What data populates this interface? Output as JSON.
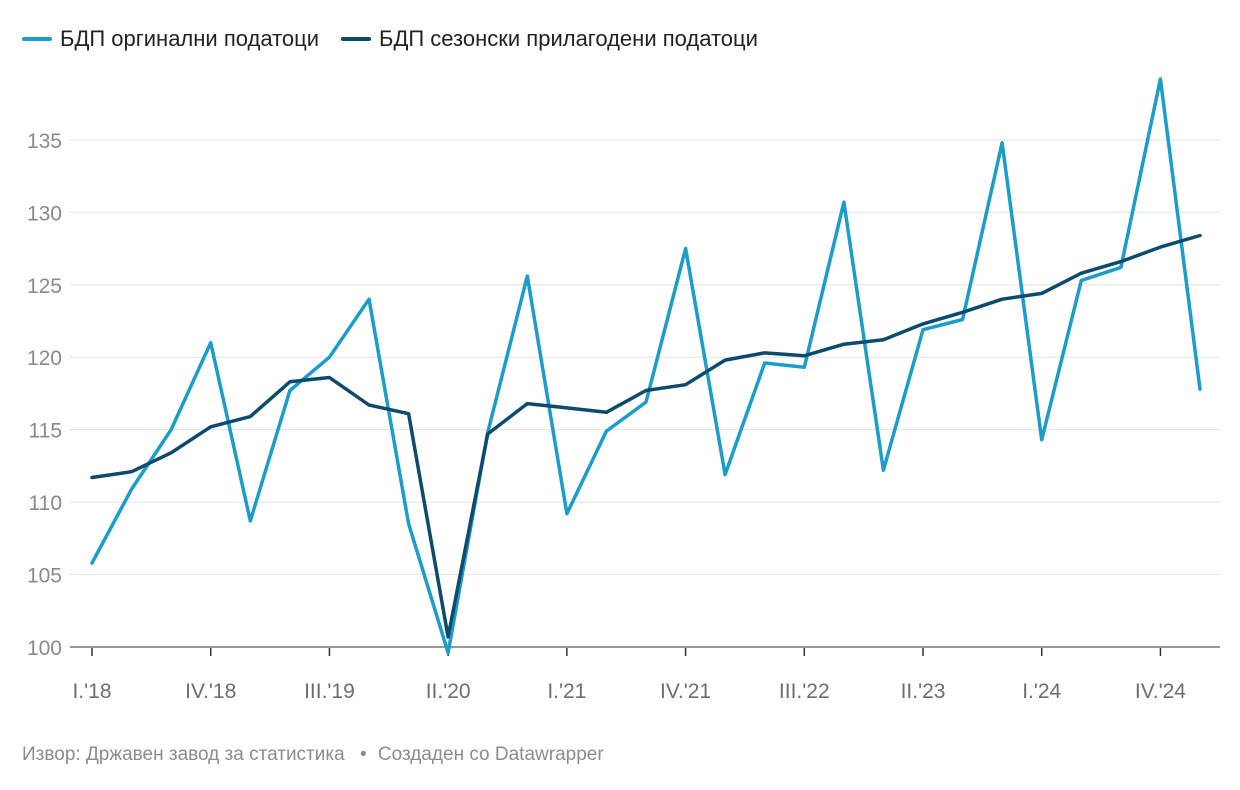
{
  "legend": {
    "original_label": "БДП оргинални податоци",
    "seasonal_label": "БДП сезонски прилагодени податоци"
  },
  "footer": {
    "source": "Извор: Државен завод за статистика",
    "separator": "•",
    "credit": "Создаден со Datawrapper"
  },
  "chart_data": {
    "type": "line",
    "x": [
      "I.'18",
      "II.'18",
      "III.'18",
      "IV.'18",
      "I.'19",
      "II.'19",
      "III.'19",
      "IV.'19",
      "I.'20",
      "II.'20",
      "III.'20",
      "IV.'20",
      "I.'21",
      "II.'21",
      "III.'21",
      "IV.'21",
      "I.'22",
      "II.'22",
      "III.'22",
      "IV.'22",
      "I.'23",
      "II.'23",
      "III.'23",
      "IV.'23",
      "I.'24",
      "II.'24",
      "III.'24",
      "IV.'24",
      "I.'25"
    ],
    "x_tick_labels": [
      "I.'18",
      "IV.'18",
      "III.'19",
      "II.'20",
      "I.'21",
      "IV.'21",
      "III.'22",
      "II.'23",
      "I.'24",
      "IV.'24"
    ],
    "series": [
      {
        "name": "БДП оргинални податоци",
        "color": "#1a9ec9",
        "values": [
          105.8,
          110.9,
          115.0,
          121.0,
          108.7,
          117.7,
          120.0,
          124.0,
          108.5,
          99.6,
          114.8,
          125.6,
          109.2,
          114.9,
          116.9,
          127.5,
          111.9,
          119.6,
          119.3,
          130.7,
          112.2,
          121.9,
          122.6,
          134.8,
          114.3,
          125.3,
          126.2,
          139.2,
          117.8
        ]
      },
      {
        "name": "БДП сезонски прилагодени податоци",
        "color": "#0c4a6e",
        "values": [
          111.7,
          112.1,
          113.4,
          115.2,
          115.9,
          118.3,
          118.6,
          116.7,
          116.1,
          100.7,
          114.7,
          116.8,
          116.5,
          116.2,
          117.7,
          118.1,
          119.8,
          120.3,
          120.1,
          120.9,
          121.2,
          122.3,
          123.1,
          124.0,
          124.4,
          125.8,
          126.6,
          127.6,
          128.4
        ]
      }
    ],
    "y_ticks": [
      100,
      105,
      110,
      115,
      120,
      125,
      130,
      135
    ],
    "ylim": [
      100,
      139.2
    ],
    "grid": true,
    "legend_position": "top-left",
    "xlabel": "",
    "ylabel": ""
  }
}
